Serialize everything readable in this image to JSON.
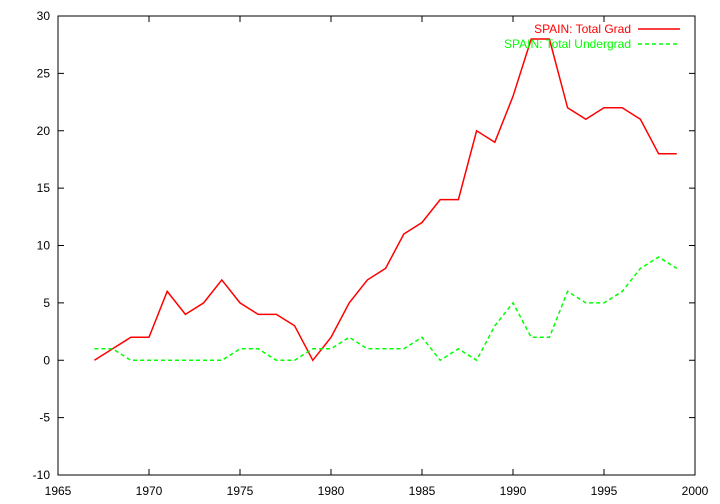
{
  "chart_data": {
    "type": "line",
    "title": "",
    "xlabel": "",
    "ylabel": "",
    "xlim": [
      1965,
      2000
    ],
    "ylim": [
      -10,
      30
    ],
    "xticks": [
      1965,
      1970,
      1975,
      1980,
      1985,
      1990,
      1995,
      2000
    ],
    "yticks": [
      -10,
      -5,
      0,
      5,
      10,
      15,
      20,
      25,
      30
    ],
    "grid": false,
    "legend": "top-right",
    "x": [
      1967,
      1968,
      1969,
      1970,
      1971,
      1972,
      1973,
      1974,
      1975,
      1976,
      1977,
      1978,
      1979,
      1980,
      1981,
      1982,
      1983,
      1984,
      1985,
      1986,
      1987,
      1988,
      1989,
      1990,
      1991,
      1992,
      1993,
      1994,
      1995,
      1996,
      1997,
      1998,
      1999
    ],
    "series": [
      {
        "name": "SPAIN: Total Grad",
        "color": "#ff0000",
        "dash": "solid",
        "values": [
          0,
          1,
          2,
          2,
          6,
          4,
          5,
          7,
          5,
          4,
          4,
          3,
          0,
          2,
          5,
          7,
          8,
          11,
          12,
          14,
          14,
          20,
          19,
          23,
          28,
          28,
          22,
          21,
          22,
          22,
          21,
          18,
          18
        ]
      },
      {
        "name": "SPAIN: Total Undergrad",
        "color": "#00ff00",
        "dash": "dashed",
        "values": [
          1,
          1,
          0,
          0,
          0,
          0,
          0,
          0,
          1,
          1,
          0,
          0,
          1,
          1,
          2,
          1,
          1,
          1,
          2,
          0,
          1,
          0,
          3,
          5,
          2,
          2,
          6,
          5,
          5,
          6,
          8,
          9,
          8
        ]
      }
    ]
  }
}
